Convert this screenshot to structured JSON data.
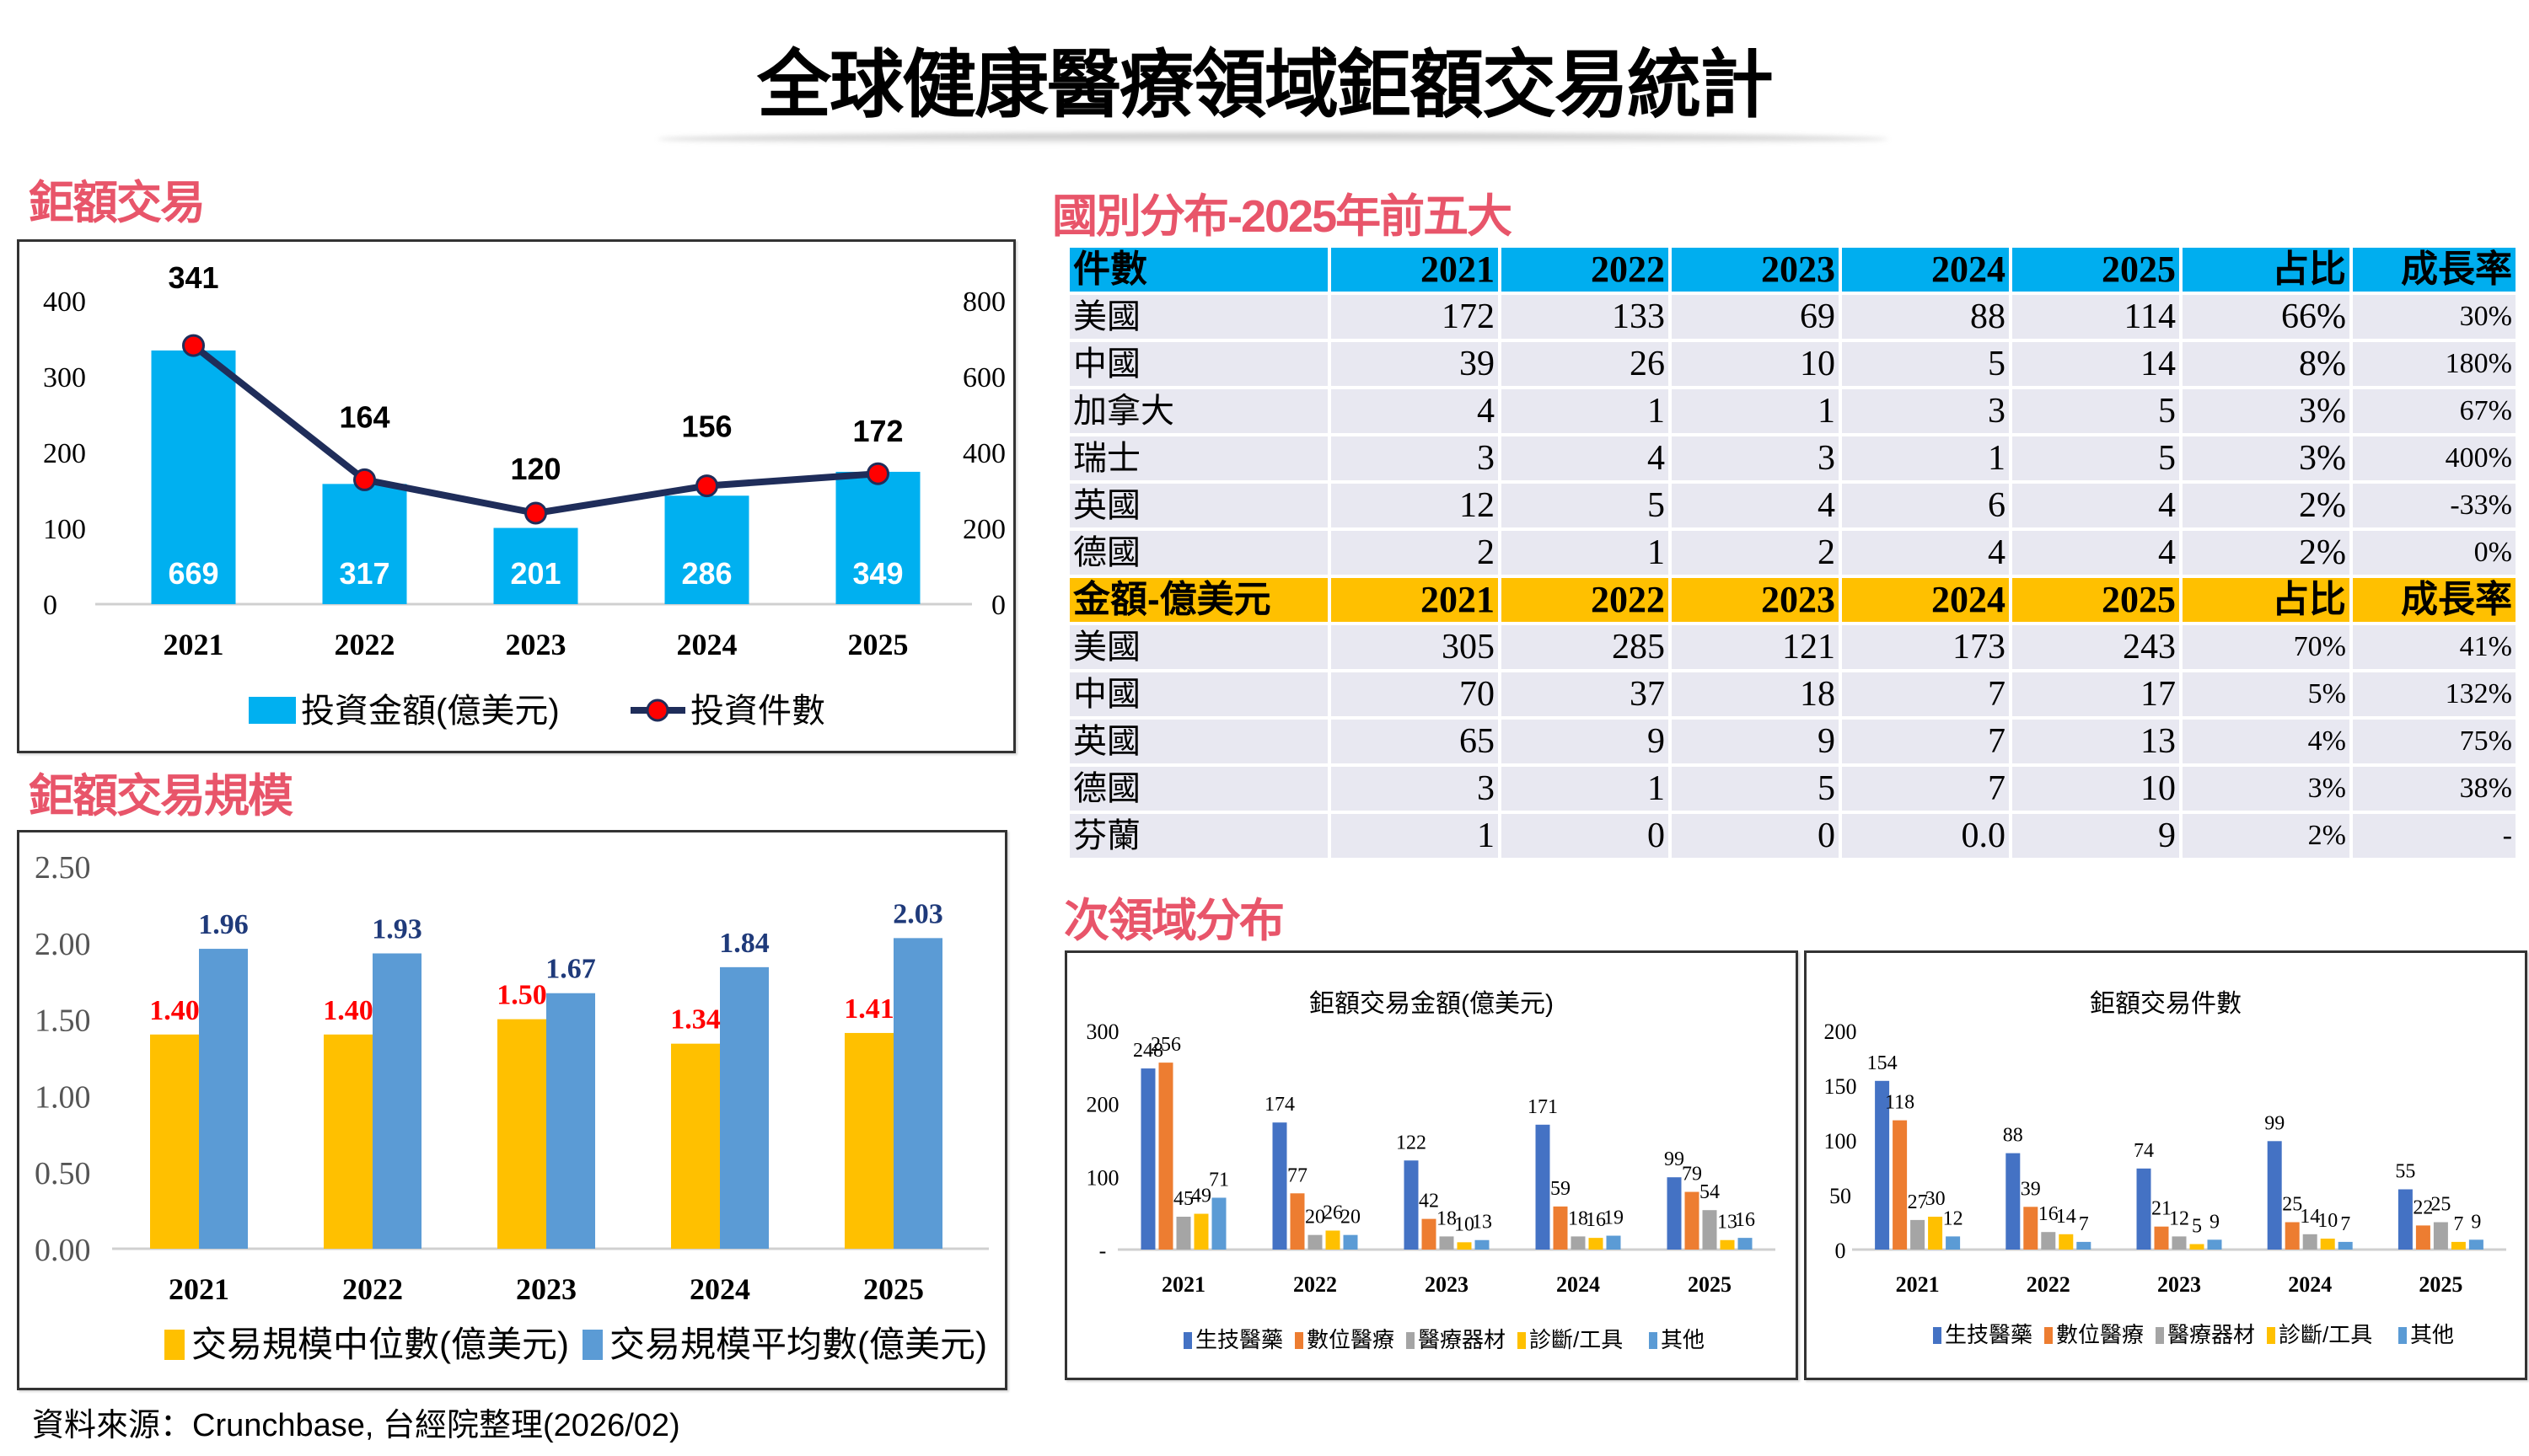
{
  "header": {
    "title": "全球健康醫療領域鉅額交易統計"
  },
  "sections": {
    "deals": "鉅額交易",
    "deal_size": "鉅額交易規模",
    "country": "國別分布-2025年前五大",
    "subdomain": "次領域分布"
  },
  "source": "資料來源：Crunchbase, 台經院整理(2026/02)",
  "colors": {
    "section_label": "#e8556a",
    "amount_bar": "#00b0f0",
    "count_line": "#1f2d5a",
    "count_marker": "#ff0000",
    "median_bar": "#ffc000",
    "mean_bar": "#5b9bd5",
    "median_label": "#ff0000",
    "mean_label": "#1f3a7a",
    "table_header_count": "#00aeef",
    "table_header_amount": "#ffc000",
    "table_row": "#e8e8f1",
    "biotech": "#4472c4",
    "digital": "#ed7d31",
    "device": "#a5a5a5",
    "diagnostic": "#ffc000",
    "other": "#5b9bd5"
  },
  "table": {
    "count_header": [
      "件數",
      "2021",
      "2022",
      "2023",
      "2024",
      "2025",
      "占比",
      "成長率"
    ],
    "count_rows": [
      [
        "美國",
        "172",
        "133",
        "69",
        "88",
        "114",
        "66%",
        "30%"
      ],
      [
        "中國",
        "39",
        "26",
        "10",
        "5",
        "14",
        "8%",
        "180%"
      ],
      [
        "加拿大",
        "4",
        "1",
        "1",
        "3",
        "5",
        "3%",
        "67%"
      ],
      [
        "瑞士",
        "3",
        "4",
        "3",
        "1",
        "5",
        "3%",
        "400%"
      ],
      [
        "英國",
        "12",
        "5",
        "4",
        "6",
        "4",
        "2%",
        "-33%"
      ],
      [
        "德國",
        "2",
        "1",
        "2",
        "4",
        "4",
        "2%",
        "0%"
      ]
    ],
    "amount_header": [
      "金額-億美元",
      "2021",
      "2022",
      "2023",
      "2024",
      "2025",
      "占比",
      "成長率"
    ],
    "amount_rows": [
      [
        "美國",
        "305",
        "285",
        "121",
        "173",
        "243",
        "70%",
        "41%"
      ],
      [
        "中國",
        "70",
        "37",
        "18",
        "7",
        "17",
        "5%",
        "132%"
      ],
      [
        "英國",
        "65",
        "9",
        "9",
        "7",
        "13",
        "4%",
        "75%"
      ],
      [
        "德國",
        "3",
        "1",
        "5",
        "7",
        "10",
        "3%",
        "38%"
      ],
      [
        "芬蘭",
        "1",
        "0",
        "0",
        "0.0",
        "9",
        "2%",
        "-"
      ]
    ]
  },
  "chart_data": [
    {
      "id": "deals",
      "type": "bar+line",
      "title": "鉅額交易",
      "categories": [
        "2021",
        "2022",
        "2023",
        "2024",
        "2025"
      ],
      "series": [
        {
          "name": "投資金額(億美元)",
          "type": "bar",
          "axis": "right",
          "values": [
            669,
            317,
            201,
            286,
            349
          ]
        },
        {
          "name": "投資件數",
          "type": "line",
          "axis": "left",
          "values": [
            341,
            164,
            120,
            156,
            172
          ]
        }
      ],
      "y_left": {
        "range": [
          0,
          400
        ],
        "ticks": [
          "0",
          "100",
          "200",
          "300",
          "400"
        ]
      },
      "y_right": {
        "range": [
          0,
          800
        ],
        "ticks": [
          "0",
          "200",
          "400",
          "600",
          "800"
        ]
      },
      "legend_position": "bottom",
      "grid": false
    },
    {
      "id": "deal_size",
      "type": "bar",
      "title": "鉅額交易規模",
      "categories": [
        "2021",
        "2022",
        "2023",
        "2024",
        "2025"
      ],
      "series": [
        {
          "name": "交易規模中位數(億美元)",
          "values": [
            1.4,
            1.4,
            1.5,
            1.34,
            1.41
          ]
        },
        {
          "name": "交易規模平均數(億美元)",
          "values": [
            1.96,
            1.93,
            1.67,
            1.84,
            2.03
          ]
        }
      ],
      "ylim": [
        0,
        2.5
      ],
      "y_ticks": [
        "0.00",
        "0.50",
        "1.00",
        "1.50",
        "2.00",
        "2.50"
      ],
      "legend_position": "bottom",
      "grid": false
    },
    {
      "id": "sub_amount",
      "type": "bar",
      "title": "鉅額交易金額(億美元)",
      "categories": [
        "2021",
        "2022",
        "2023",
        "2024",
        "2025"
      ],
      "series": [
        {
          "name": "生技醫藥",
          "values": [
            248,
            174,
            122,
            171,
            99
          ]
        },
        {
          "name": "數位醫療",
          "values": [
            256,
            77,
            42,
            59,
            79
          ]
        },
        {
          "name": "醫療器材",
          "values": [
            45,
            20,
            18,
            18,
            54
          ]
        },
        {
          "name": "診斷/工具",
          "values": [
            49,
            26,
            10,
            16,
            13
          ]
        },
        {
          "name": "其他",
          "values": [
            71,
            20,
            13,
            19,
            16
          ]
        }
      ],
      "ylim": [
        0,
        300
      ],
      "y_ticks": [
        "-",
        "100",
        "200",
        "300"
      ],
      "legend_position": "bottom",
      "grid": false
    },
    {
      "id": "sub_count",
      "type": "bar",
      "title": "鉅額交易件數",
      "categories": [
        "2021",
        "2022",
        "2023",
        "2024",
        "2025"
      ],
      "series": [
        {
          "name": "生技醫藥",
          "values": [
            154,
            88,
            74,
            99,
            55
          ]
        },
        {
          "name": "數位醫療",
          "values": [
            118,
            39,
            21,
            25,
            22
          ]
        },
        {
          "name": "醫療器材",
          "values": [
            27,
            16,
            12,
            14,
            25
          ]
        },
        {
          "name": "診斷/工具",
          "values": [
            30,
            14,
            5,
            10,
            7
          ]
        },
        {
          "name": "其他",
          "values": [
            12,
            7,
            9,
            7,
            9
          ]
        }
      ],
      "ylim": [
        0,
        200
      ],
      "y_ticks": [
        "0",
        "50",
        "100",
        "150",
        "200"
      ],
      "legend_position": "bottom",
      "grid": false
    }
  ]
}
